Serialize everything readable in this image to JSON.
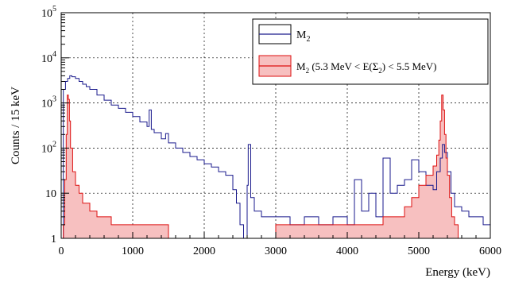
{
  "chart_data": {
    "type": "line",
    "title": "",
    "xlabel": "Energy (keV)",
    "ylabel": "Counts / 15 keV",
    "xlim": [
      0,
      6000
    ],
    "ylim": [
      1,
      100000
    ],
    "yscale": "log",
    "grid": true,
    "legend_position": "top-right",
    "x_ticks": [
      0,
      1000,
      2000,
      3000,
      4000,
      5000,
      6000
    ],
    "x_tick_labels": [
      "0",
      "1000",
      "2000",
      "3000",
      "4000",
      "5000",
      "6000"
    ],
    "y_ticks": [
      1,
      10,
      100,
      1000,
      10000,
      100000
    ],
    "y_tick_labels": [
      "1",
      "10",
      "10^2",
      "10^3",
      "10^4",
      "10^5"
    ],
    "series": [
      {
        "name": "M2",
        "color": "#1a1a8c",
        "style": "histogram-line",
        "x": [
          0,
          30,
          60,
          90,
          120,
          150,
          200,
          250,
          300,
          350,
          400,
          500,
          600,
          700,
          800,
          900,
          1000,
          1100,
          1200,
          1230,
          1260,
          1300,
          1400,
          1460,
          1500,
          1600,
          1700,
          1800,
          1900,
          2000,
          2100,
          2200,
          2300,
          2400,
          2450,
          2500,
          2550,
          2600,
          2615,
          2650,
          2700,
          2800,
          2900,
          3000,
          3200,
          3400,
          3600,
          3800,
          4000,
          4100,
          4200,
          4300,
          4400,
          4500,
          4600,
          4700,
          4800,
          4900,
          5000,
          5100,
          5200,
          5250,
          5300,
          5330,
          5360,
          5400,
          5450,
          5500,
          5600,
          5700,
          5800,
          5900,
          6000
        ],
        "y": [
          1,
          2000,
          3000,
          3500,
          4000,
          3800,
          3500,
          3000,
          2600,
          2300,
          2000,
          1500,
          1150,
          900,
          760,
          620,
          500,
          380,
          300,
          700,
          260,
          220,
          160,
          210,
          130,
          100,
          80,
          65,
          55,
          45,
          38,
          30,
          25,
          12,
          6,
          2,
          1,
          15,
          120,
          8,
          4,
          3,
          3,
          3,
          2,
          3,
          2,
          3,
          2,
          20,
          4,
          10,
          3,
          60,
          10,
          15,
          20,
          55,
          30,
          15,
          12,
          30,
          60,
          120,
          80,
          30,
          10,
          5,
          4,
          3,
          3,
          2,
          2
        ]
      },
      {
        "name": "M2 (5.3 MeV < E(Σ2) < 5.5 MeV)",
        "color": "#dd1111",
        "fill": "#f7c0c0",
        "style": "histogram-filled",
        "x": [
          0,
          30,
          50,
          70,
          85,
          100,
          115,
          130,
          160,
          200,
          250,
          300,
          400,
          500,
          600,
          700,
          800,
          1000,
          1200,
          1500,
          2000,
          2500,
          3000,
          3500,
          4000,
          4500,
          4800,
          4900,
          5000,
          5100,
          5150,
          5200,
          5250,
          5280,
          5300,
          5320,
          5340,
          5360,
          5380,
          5400,
          5430,
          5460,
          5500,
          5550,
          5600,
          6000
        ],
        "y": [
          1,
          2,
          20,
          200,
          1500,
          1200,
          400,
          100,
          30,
          15,
          10,
          6,
          4,
          3,
          3,
          2,
          2,
          2,
          2,
          1,
          1,
          1,
          2,
          2,
          2,
          3,
          5,
          8,
          15,
          25,
          25,
          40,
          70,
          150,
          400,
          1500,
          700,
          200,
          60,
          25,
          8,
          3,
          2,
          1,
          1,
          1
        ]
      }
    ]
  },
  "legend": {
    "entry1": {
      "label": "M",
      "sub": "2"
    },
    "entry2": {
      "label": "M",
      "sub": "2",
      "rest1": " (5.3 MeV < E(Σ",
      "sub2": "2",
      "rest2": ") < 5.5 MeV)"
    }
  },
  "axis_text": {
    "xlabel": "Energy (keV)",
    "ylabel": "Counts / 15 keV",
    "ytick_base": "10",
    "ytick_exponents": [
      "2",
      "3",
      "4",
      "5"
    ],
    "ytick_plain": [
      "1",
      "10"
    ]
  }
}
